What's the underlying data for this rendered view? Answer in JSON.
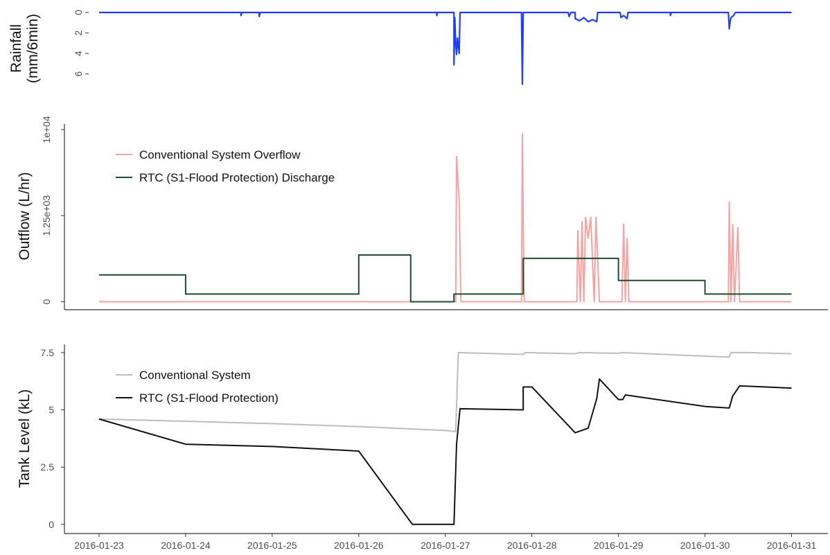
{
  "chart_data": [
    {
      "type": "line",
      "ylabel": [
        "Rainfall",
        "(mm/6min)"
      ],
      "color": "#1f3cff",
      "y_inverted": true,
      "xlim": [
        -0.4,
        8.42
      ],
      "ylim": [
        0,
        7.3
      ],
      "yticks": [
        0,
        2,
        4,
        6
      ],
      "x": [
        0,
        1.64,
        1.64,
        1.65,
        1.85,
        1.85,
        1.86,
        3.9,
        3.9,
        3.91,
        4.1,
        4.1,
        4.11,
        4.12,
        4.13,
        4.14,
        4.16,
        4.17,
        4.88,
        4.89,
        4.9,
        5.42,
        5.43,
        5.45,
        5.5,
        5.5,
        5.55,
        5.6,
        5.65,
        5.7,
        5.75,
        5.76,
        6.02,
        6.03,
        6.06,
        6.1,
        6.11,
        6.6,
        6.6,
        6.61,
        7.27,
        7.28,
        7.29,
        7.3,
        7.33,
        7.35,
        8
      ],
      "values": [
        0,
        0,
        0.3,
        0,
        0,
        0.4,
        0,
        0,
        0.3,
        0,
        0,
        5.1,
        0.5,
        3.0,
        4.1,
        2.5,
        4.0,
        0,
        0,
        7.0,
        0,
        0,
        0.4,
        0,
        0,
        0.6,
        0.8,
        0.5,
        0.9,
        0.7,
        0.9,
        0,
        0,
        0.5,
        0.3,
        0.6,
        0,
        0,
        0.3,
        0,
        0,
        1.6,
        0.9,
        0.5,
        0.3,
        0,
        0
      ]
    },
    {
      "type": "line",
      "ylabel": "Outflow (L/hr)",
      "y_scale": "cube-root",
      "legend": "top-left",
      "xlim": [
        -0.4,
        8.42
      ],
      "ylim": [
        -1,
        11000
      ],
      "yticks": [
        0,
        {
          "value": 1250,
          "label": "1.25e+03"
        },
        {
          "value": 10000,
          "label": "1e+04"
        }
      ],
      "series": [
        {
          "name": "Conventional System Overflow",
          "color": "#f7a1a1",
          "x": [
            0,
            4.12,
            4.13,
            4.16,
            4.18,
            4.88,
            4.89,
            4.91,
            5.52,
            5.53,
            5.56,
            5.58,
            5.6,
            5.62,
            5.65,
            5.68,
            5.72,
            5.74,
            5.78,
            6.04,
            6.06,
            6.08,
            6.1,
            6.12,
            7.27,
            7.28,
            7.3,
            7.32,
            7.34,
            7.38,
            7.4,
            8
          ],
          "values": [
            0,
            0,
            6000,
            2000,
            0,
            0,
            9300,
            0,
            0,
            700,
            0,
            1000,
            0,
            1175,
            500,
            1175,
            0,
            1175,
            0,
            0,
            910,
            0,
            500,
            0,
            0,
            1930,
            0,
            900,
            0,
            800,
            0,
            0
          ]
        },
        {
          "name": "RTC (S1-Flood Protection) Discharge",
          "color": "#1d4d2b",
          "x": [
            0,
            1,
            1,
            3,
            3,
            3.6,
            3.6,
            4.1,
            4.1,
            4.9,
            4.9,
            6,
            6,
            7,
            7,
            8
          ],
          "values": [
            38,
            38,
            0.9,
            0.9,
            200,
            200,
            0,
            0,
            0.9,
            0.9,
            160,
            160,
            19,
            19,
            0.9,
            0.9
          ]
        }
      ]
    },
    {
      "type": "line",
      "ylabel": "Tank Level (kL)",
      "legend": "top-left",
      "xlim": [
        -0.4,
        8.42
      ],
      "ylim": [
        -0.4,
        7.86
      ],
      "yticks": [
        0,
        2.5,
        5,
        7.5
      ],
      "xticks": [
        {
          "value": 0,
          "label": "2016-01-23"
        },
        {
          "value": 1,
          "label": "2016-01-24"
        },
        {
          "value": 2,
          "label": "2016-01-25"
        },
        {
          "value": 3,
          "label": "2016-01-26"
        },
        {
          "value": 4,
          "label": "2016-01-27"
        },
        {
          "value": 5,
          "label": "2016-01-28"
        },
        {
          "value": 6,
          "label": "2016-01-29"
        },
        {
          "value": 7,
          "label": "2016-01-30"
        },
        {
          "value": 8,
          "label": "2016-01-31"
        }
      ],
      "series": [
        {
          "name": "Conventional System",
          "color": "#bdbdbd",
          "x": [
            0,
            1,
            2,
            3,
            4,
            4.12,
            4.15,
            4.9,
            4.92,
            5.5,
            5.55,
            6,
            6.05,
            7.28,
            7.3,
            7.5,
            8
          ],
          "values": [
            4.6,
            4.5,
            4.4,
            4.27,
            4.1,
            4.05,
            7.5,
            7.42,
            7.5,
            7.45,
            7.5,
            7.47,
            7.5,
            7.3,
            7.5,
            7.5,
            7.45
          ]
        },
        {
          "name": "RTC (S1-Flood Protection)",
          "color": "#111111",
          "x": [
            0,
            1,
            2,
            3,
            3.62,
            4.1,
            4.13,
            4.17,
            4.9,
            4.9,
            5.0,
            5.5,
            5.65,
            5.75,
            5.78,
            6.0,
            6.05,
            6.08,
            7.0,
            7.28,
            7.32,
            7.4,
            8
          ],
          "values": [
            4.6,
            3.5,
            3.4,
            3.2,
            0,
            0,
            3.5,
            5.05,
            5.0,
            6.0,
            6.0,
            4.0,
            4.2,
            5.5,
            6.35,
            5.45,
            5.45,
            5.65,
            5.15,
            5.08,
            5.6,
            6.05,
            5.95
          ]
        }
      ]
    }
  ]
}
